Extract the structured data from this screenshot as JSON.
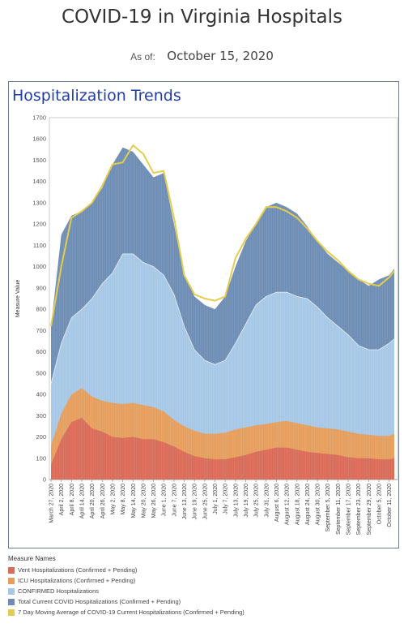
{
  "header": {
    "title": "COVID-19 in Virginia Hospitals",
    "as_of_label": "As of:",
    "as_of_date": "October 15, 2020"
  },
  "panel": {
    "title": "Hospitalization Trends"
  },
  "legend": {
    "title": "Measure Names",
    "items": [
      {
        "label": "Vent Hospitalizations (Confirmed + Pending)",
        "color": "#d96b58"
      },
      {
        "label": "ICU Hospitalizations (Confirmed + Pending)",
        "color": "#e59e5d"
      },
      {
        "label": "CONFIRMED Hospitalizations",
        "color": "#a6c8e6"
      },
      {
        "label": "Total Current COVID Hospitalizations (Confirmed + Pending)",
        "color": "#6e8db5"
      },
      {
        "label": "7 Day Moving Average of COVID-19 Current Hospitalizations (Confirmed + Pending)",
        "color": "#e6cc4c"
      }
    ]
  },
  "chart_data": {
    "type": "area",
    "ylabel": "Measure Value",
    "ylim": [
      0,
      1700
    ],
    "yticks": [
      0,
      100,
      200,
      300,
      400,
      500,
      600,
      700,
      800,
      900,
      1000,
      1100,
      1200,
      1300,
      1400,
      1500,
      1600,
      1700
    ],
    "date_range": [
      "March 27, 2020",
      "October 14, 2020"
    ],
    "xtick_labels": [
      "March 27, 2020",
      "April 2, 2020",
      "April 8, 2020",
      "April 14, 2020",
      "April 20, 2020",
      "April 26, 2020",
      "May 2, 2020",
      "May 8, 2020",
      "May 14, 2020",
      "May 20, 2020",
      "May 26, 2020",
      "June 1, 2020",
      "June 7, 2020",
      "June 13, 2020",
      "June 19, 2020",
      "June 25, 2020",
      "July 1, 2020",
      "July 7, 2020",
      "July 13, 2020",
      "July 19, 2020",
      "July 25, 2020",
      "July 31, 2020",
      "August 6, 2020",
      "August 12, 2020",
      "August 18, 2020",
      "August 24, 2020",
      "August 30, 2020",
      "September 5, 2020",
      "September 11, 2020",
      "September 17, 2020",
      "September 23, 2020",
      "September 29, 2020",
      "October 5, 2020",
      "October 11, 2020"
    ],
    "grid": false,
    "legend_position": "bottom",
    "series": [
      {
        "name": "Vent Hospitalizations (Confirmed + Pending)",
        "color": "#d96b58",
        "x": [
          "2020-03-27",
          "2020-04-02",
          "2020-04-08",
          "2020-04-14",
          "2020-04-20",
          "2020-04-26",
          "2020-05-02",
          "2020-05-08",
          "2020-05-14",
          "2020-05-20",
          "2020-05-26",
          "2020-06-01",
          "2020-06-07",
          "2020-06-13",
          "2020-06-19",
          "2020-06-25",
          "2020-07-01",
          "2020-07-07",
          "2020-07-13",
          "2020-07-19",
          "2020-07-25",
          "2020-07-31",
          "2020-08-06",
          "2020-08-12",
          "2020-08-18",
          "2020-08-24",
          "2020-08-30",
          "2020-09-05",
          "2020-09-11",
          "2020-09-17",
          "2020-09-23",
          "2020-09-29",
          "2020-10-05",
          "2020-10-11",
          "2020-10-14"
        ],
        "values": [
          70,
          190,
          270,
          290,
          240,
          225,
          200,
          195,
          200,
          190,
          190,
          175,
          155,
          130,
          110,
          100,
          95,
          95,
          105,
          115,
          130,
          140,
          150,
          150,
          140,
          130,
          125,
          120,
          115,
          105,
          100,
          100,
          95,
          95,
          100
        ]
      },
      {
        "name": "ICU Hospitalizations (Confirmed + Pending)",
        "color": "#e59e5d",
        "x": [
          "2020-03-27",
          "2020-04-02",
          "2020-04-08",
          "2020-04-14",
          "2020-04-20",
          "2020-04-26",
          "2020-05-02",
          "2020-05-08",
          "2020-05-14",
          "2020-05-20",
          "2020-05-26",
          "2020-06-01",
          "2020-06-07",
          "2020-06-13",
          "2020-06-19",
          "2020-06-25",
          "2020-07-01",
          "2020-07-07",
          "2020-07-13",
          "2020-07-19",
          "2020-07-25",
          "2020-07-31",
          "2020-08-06",
          "2020-08-12",
          "2020-08-18",
          "2020-08-24",
          "2020-08-30",
          "2020-09-05",
          "2020-09-11",
          "2020-09-17",
          "2020-09-23",
          "2020-09-29",
          "2020-10-05",
          "2020-10-11",
          "2020-10-14"
        ],
        "values": [
          160,
          310,
          400,
          430,
          390,
          370,
          360,
          355,
          360,
          350,
          340,
          320,
          280,
          250,
          230,
          215,
          215,
          220,
          235,
          245,
          255,
          260,
          270,
          275,
          265,
          255,
          245,
          240,
          235,
          225,
          215,
          210,
          205,
          205,
          215
        ]
      },
      {
        "name": "CONFIRMED Hospitalizations",
        "color": "#a6c8e6",
        "x": [
          "2020-03-27",
          "2020-04-02",
          "2020-04-08",
          "2020-04-14",
          "2020-04-20",
          "2020-04-26",
          "2020-05-02",
          "2020-05-08",
          "2020-05-14",
          "2020-05-20",
          "2020-05-26",
          "2020-06-01",
          "2020-06-07",
          "2020-06-13",
          "2020-06-19",
          "2020-06-25",
          "2020-07-01",
          "2020-07-07",
          "2020-07-13",
          "2020-07-19",
          "2020-07-25",
          "2020-07-31",
          "2020-08-06",
          "2020-08-12",
          "2020-08-18",
          "2020-08-24",
          "2020-08-30",
          "2020-09-05",
          "2020-09-11",
          "2020-09-17",
          "2020-09-23",
          "2020-09-29",
          "2020-10-05",
          "2020-10-11",
          "2020-10-14"
        ],
        "values": [
          450,
          640,
          760,
          800,
          850,
          920,
          970,
          1060,
          1060,
          1020,
          1000,
          960,
          870,
          720,
          610,
          560,
          540,
          560,
          640,
          730,
          820,
          860,
          880,
          880,
          860,
          850,
          810,
          760,
          720,
          680,
          630,
          610,
          610,
          640,
          660
        ]
      },
      {
        "name": "Total Current COVID Hospitalizations (Confirmed + Pending)",
        "color": "#6e8db5",
        "x": [
          "2020-03-27",
          "2020-04-02",
          "2020-04-08",
          "2020-04-14",
          "2020-04-20",
          "2020-04-26",
          "2020-05-02",
          "2020-05-08",
          "2020-05-14",
          "2020-05-20",
          "2020-05-26",
          "2020-06-01",
          "2020-06-07",
          "2020-06-13",
          "2020-06-19",
          "2020-06-25",
          "2020-07-01",
          "2020-07-07",
          "2020-07-13",
          "2020-07-19",
          "2020-07-25",
          "2020-07-31",
          "2020-08-06",
          "2020-08-12",
          "2020-08-18",
          "2020-08-24",
          "2020-08-30",
          "2020-09-05",
          "2020-09-11",
          "2020-09-17",
          "2020-09-23",
          "2020-09-29",
          "2020-10-05",
          "2020-10-11",
          "2020-10-14"
        ],
        "values": [
          720,
          1150,
          1240,
          1260,
          1300,
          1370,
          1480,
          1560,
          1540,
          1480,
          1420,
          1440,
          1200,
          960,
          860,
          820,
          800,
          860,
          1000,
          1120,
          1200,
          1280,
          1300,
          1280,
          1250,
          1190,
          1120,
          1060,
          1020,
          980,
          940,
          910,
          940,
          960,
          990
        ]
      },
      {
        "name": "7 Day Moving Average of COVID-19 Current Hospitalizations (Confirmed + Pending)",
        "color": "#e6cc4c",
        "x": [
          "2020-03-27",
          "2020-04-02",
          "2020-04-08",
          "2020-04-14",
          "2020-04-20",
          "2020-04-26",
          "2020-05-02",
          "2020-05-08",
          "2020-05-14",
          "2020-05-20",
          "2020-05-26",
          "2020-06-01",
          "2020-06-07",
          "2020-06-13",
          "2020-06-19",
          "2020-06-25",
          "2020-07-01",
          "2020-07-07",
          "2020-07-13",
          "2020-07-19",
          "2020-07-25",
          "2020-07-31",
          "2020-08-06",
          "2020-08-12",
          "2020-08-18",
          "2020-08-24",
          "2020-08-30",
          "2020-09-05",
          "2020-09-11",
          "2020-09-17",
          "2020-09-23",
          "2020-09-29",
          "2020-10-05",
          "2020-10-11",
          "2020-10-14"
        ],
        "values": [
          720,
          1000,
          1230,
          1260,
          1300,
          1380,
          1480,
          1490,
          1570,
          1530,
          1440,
          1450,
          1230,
          960,
          870,
          850,
          840,
          860,
          1040,
          1130,
          1200,
          1280,
          1280,
          1260,
          1230,
          1180,
          1120,
          1070,
          1030,
          980,
          940,
          920,
          910,
          950,
          980
        ]
      }
    ]
  }
}
